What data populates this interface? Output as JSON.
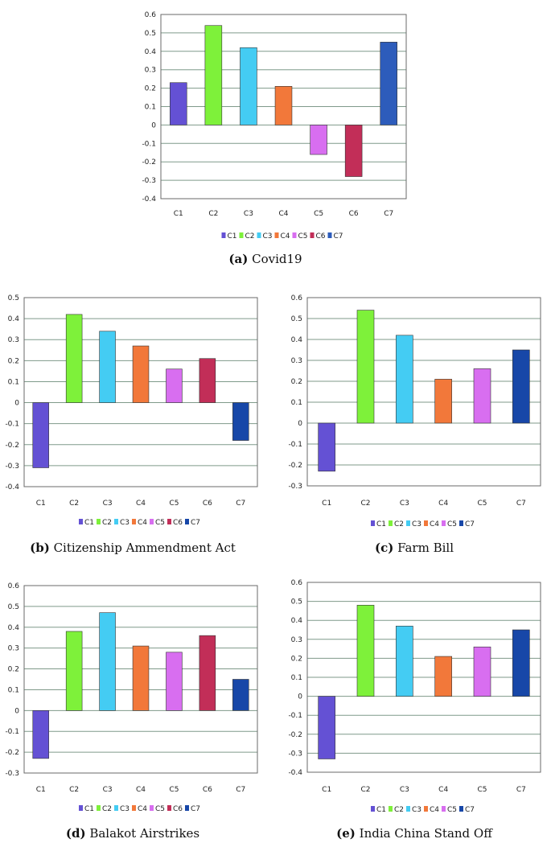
{
  "colors": {
    "C1": "#6451d4",
    "C2": "#7ef13a",
    "C3": "#44ccf3",
    "C4": "#f2783a",
    "C5": "#d86ef0",
    "C6": "#c22e58",
    "C7": "#1747a8",
    "C7_covid": "#2d5cbb",
    "grid": "#7f9a8a",
    "axis": "#6a6a6a"
  },
  "chart_data": [
    {
      "id": "a",
      "type": "bar",
      "tag": "(a)",
      "caption": "Covid19",
      "categories": [
        "C1",
        "C2",
        "C3",
        "C4",
        "C5",
        "C6",
        "C7"
      ],
      "values": [
        0.23,
        0.54,
        0.42,
        0.21,
        -0.16,
        -0.28,
        0.45
      ],
      "yticks": [
        "0.6",
        "0.5",
        "0.4",
        "0.3",
        "0.2",
        "0.1",
        "0",
        "-0.1",
        "-0.2",
        "-0.3",
        "-0.4"
      ],
      "ylim": [
        -0.4,
        0.6
      ],
      "legend": [
        "C1",
        "C2",
        "C3",
        "C4",
        "C5",
        "C6",
        "C7"
      ]
    },
    {
      "id": "b",
      "type": "bar",
      "tag": "(b)",
      "caption": "Citizenship Ammendment Act",
      "categories": [
        "C1",
        "C2",
        "C3",
        "C4",
        "C5",
        "C6",
        "C7"
      ],
      "values": [
        -0.31,
        0.42,
        0.34,
        0.27,
        0.16,
        0.21,
        -0.18
      ],
      "yticks": [
        "0.5",
        "0.4",
        "0.3",
        "0.2",
        "0.1",
        "0",
        "-0.1",
        "-0.2",
        "-0.3",
        "-0.4"
      ],
      "ylim": [
        -0.4,
        0.5
      ],
      "legend": [
        "C1",
        "C2",
        "C3",
        "C4",
        "C5",
        "C6",
        "C7"
      ]
    },
    {
      "id": "c",
      "type": "bar",
      "tag": "(c)",
      "caption": "Farm Bill",
      "categories": [
        "C1",
        "C2",
        "C3",
        "C4",
        "C5",
        "C7"
      ],
      "values": [
        -0.23,
        0.54,
        0.42,
        0.21,
        0.26,
        0.35
      ],
      "yticks": [
        "0.6",
        "0.5",
        "0.4",
        "0.3",
        "0.2",
        "0.1",
        "0",
        "-0.1",
        "-0.2",
        "-0.3"
      ],
      "ylim": [
        -0.3,
        0.6
      ],
      "legend": [
        "C1",
        "C2",
        "C3",
        "C4",
        "C5",
        "C7"
      ]
    },
    {
      "id": "d",
      "type": "bar",
      "tag": "(d)",
      "caption": "Balakot Airstrikes",
      "categories": [
        "C1",
        "C2",
        "C3",
        "C4",
        "C5",
        "C6",
        "C7"
      ],
      "values": [
        -0.23,
        0.38,
        0.47,
        0.31,
        0.28,
        0.36,
        0.15
      ],
      "yticks": [
        "0.6",
        "0.5",
        "0.4",
        "0.3",
        "0.2",
        "0.1",
        "0",
        "-0.1",
        "-0.2",
        "-0.3"
      ],
      "ylim": [
        -0.3,
        0.6
      ],
      "legend": [
        "C1",
        "C2",
        "C3",
        "C4",
        "C5",
        "C6",
        "C7"
      ]
    },
    {
      "id": "e",
      "type": "bar",
      "tag": "(e)",
      "caption": "India China Stand Off",
      "categories": [
        "C1",
        "C2",
        "C3",
        "C4",
        "C5",
        "C7"
      ],
      "values": [
        -0.33,
        0.48,
        0.37,
        0.21,
        0.26,
        0.35
      ],
      "yticks": [
        "0.6",
        "0.5",
        "0.4",
        "0.3",
        "0.2",
        "0.1",
        "0",
        "-0.1",
        "-0.2",
        "-0.3",
        "-0.4"
      ],
      "ylim": [
        -0.4,
        0.6
      ],
      "legend": [
        "C1",
        "C2",
        "C3",
        "C4",
        "C5",
        "C7"
      ]
    }
  ]
}
